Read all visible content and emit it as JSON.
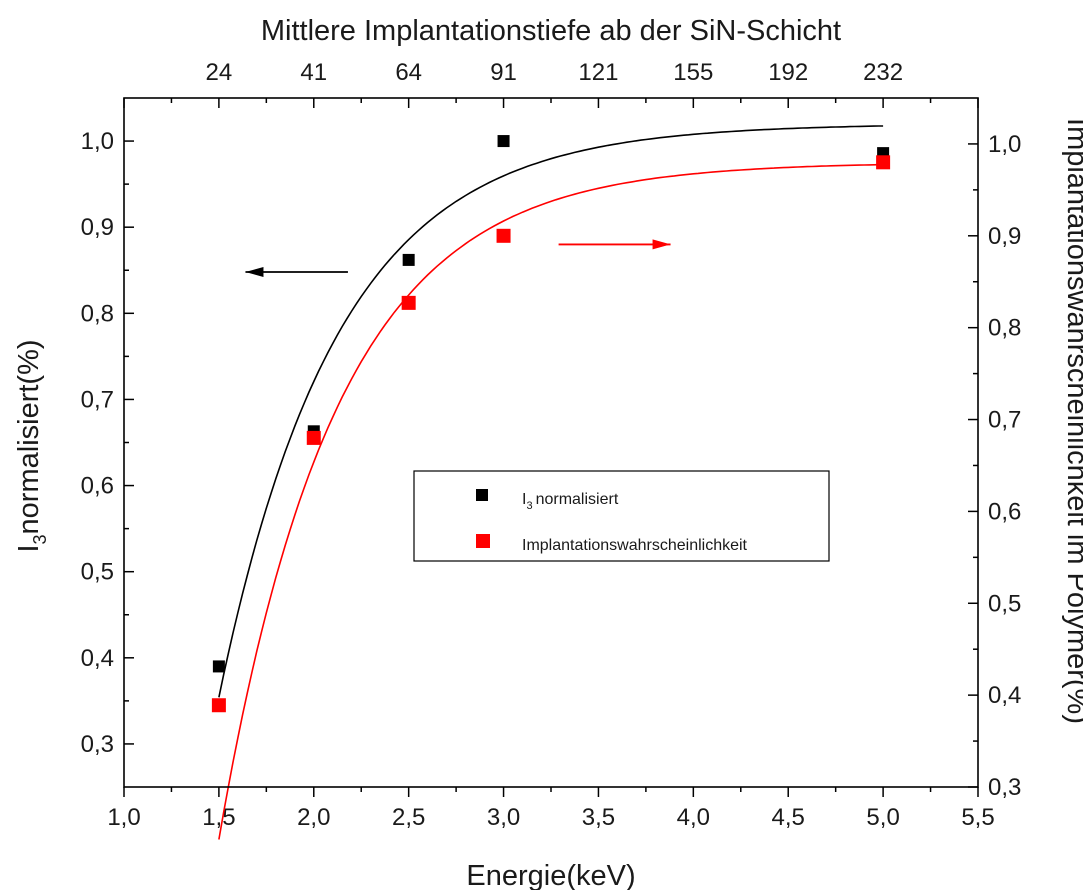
{
  "chart_data": {
    "type": "scatter",
    "title": "",
    "xlabel": "Energie(keV)",
    "xlim": [
      1.0,
      5.5
    ],
    "x_ticks": [
      "1,0",
      "1,5",
      "2,0",
      "2,5",
      "3,0",
      "3,5",
      "4,0",
      "4,5",
      "5,0",
      "5,5"
    ],
    "top_axis": {
      "label": "Mittlere Implantationstiefe ab der SiN-Schicht",
      "tick_labels": [
        "24",
        "41",
        "64",
        "91",
        "121",
        "155",
        "192",
        "232"
      ],
      "tick_x": [
        1.5,
        2.0,
        2.5,
        3.0,
        3.5,
        4.0,
        4.5,
        5.0
      ]
    },
    "left_axis": {
      "label_main": "I",
      "label_sub": "3",
      "label_rest": "normalisiert(%)",
      "ylim": [
        0.25,
        1.05
      ],
      "tick_labels": [
        "0,3",
        "0,4",
        "0,5",
        "0,6",
        "0,7",
        "0,8",
        "0,9",
        "1,0"
      ],
      "tick_values": [
        0.3,
        0.4,
        0.5,
        0.6,
        0.7,
        0.8,
        0.9,
        1.0
      ]
    },
    "right_axis": {
      "label": "Implantationswahrscheinlichkeit im Polymer(%)",
      "ylim": [
        0.3,
        1.05
      ],
      "tick_labels": [
        "0,3",
        "0,4",
        "0,5",
        "0,6",
        "0,7",
        "0,8",
        "0,9",
        "1,0"
      ],
      "tick_values": [
        0.3,
        0.4,
        0.5,
        0.6,
        0.7,
        0.8,
        0.9,
        1.0
      ]
    },
    "series": [
      {
        "name": "normalisiert",
        "legend_main": "I",
        "legend_sub": "3",
        "axis": "left",
        "color": "#000000",
        "x": [
          1.5,
          2.0,
          2.5,
          3.0,
          5.0
        ],
        "y": [
          0.39,
          0.663,
          0.862,
          1.0,
          0.986
        ],
        "fit": {
          "A": 1.02,
          "B": 7.34,
          "k": 1.6
        }
      },
      {
        "name": "Implantationswahrscheinlichkeit",
        "axis": "right",
        "color": "#ff0000",
        "x": [
          1.5,
          2.0,
          2.5,
          3.0,
          5.0
        ],
        "y": [
          0.389,
          0.68,
          0.827,
          0.9,
          0.98
        ],
        "fit": {
          "A": 0.98,
          "B": 8.5,
          "k": 1.63
        }
      }
    ],
    "arrows": [
      {
        "direction": "left",
        "color": "#000000",
        "x_from": 2.18,
        "x_to": 1.64,
        "y": 0.848,
        "axis": "left"
      },
      {
        "direction": "right",
        "color": "#ff0000",
        "x_from": 3.29,
        "x_to": 3.88,
        "y": 0.88,
        "axis": "left"
      }
    ],
    "legend_position": "center-right"
  }
}
